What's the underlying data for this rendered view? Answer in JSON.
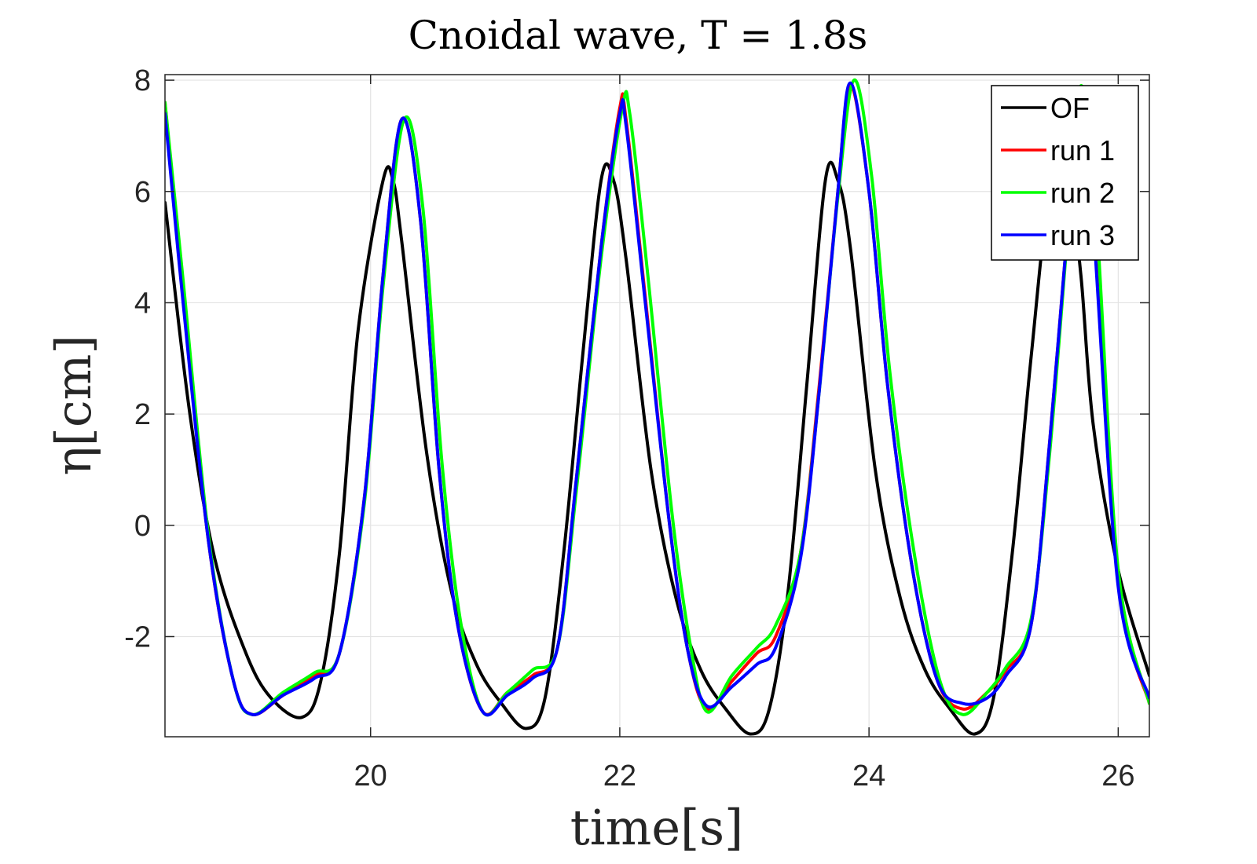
{
  "chart_data": {
    "type": "line",
    "title": "Cnoidal wave, T = 1.8s",
    "xlabel": "time[s]",
    "ylabel": "η[cm]",
    "xlim": [
      18.35,
      26.25
    ],
    "ylim": [
      -3.8,
      8.1
    ],
    "xticks": [
      20,
      22,
      24,
      26
    ],
    "yticks": [
      -2,
      0,
      2,
      4,
      6,
      8
    ],
    "grid": true,
    "legend_position": "top-right",
    "series": [
      {
        "name": "OF",
        "color": "#000000",
        "x": [
          18.35,
          18.55,
          18.75,
          19.0,
          19.2,
          19.45,
          19.6,
          19.75,
          19.9,
          20.1,
          20.18,
          20.25,
          20.45,
          20.65,
          20.85,
          21.05,
          21.25,
          21.4,
          21.55,
          21.7,
          21.85,
          21.95,
          22.05,
          22.25,
          22.45,
          22.65,
          22.85,
          23.05,
          23.2,
          23.35,
          23.5,
          23.65,
          23.75,
          23.85,
          24.05,
          24.25,
          24.45,
          24.65,
          24.85,
          25.0,
          25.15,
          25.3,
          25.45,
          25.6,
          25.7,
          25.8,
          26.0,
          26.25
        ],
        "y": [
          5.8,
          2.0,
          -0.6,
          -2.3,
          -3.1,
          -3.45,
          -2.8,
          -0.5,
          3.5,
          6.2,
          6.2,
          5.1,
          1.3,
          -1.2,
          -2.5,
          -3.2,
          -3.65,
          -3.1,
          -0.5,
          3.0,
          6.2,
          6.2,
          4.8,
          1.0,
          -1.3,
          -2.6,
          -3.3,
          -3.75,
          -3.3,
          -1.2,
          2.5,
          6.2,
          6.2,
          5.0,
          1.0,
          -1.3,
          -2.6,
          -3.3,
          -3.75,
          -3.1,
          -0.5,
          3.0,
          6.0,
          6.2,
          4.5,
          1.8,
          -0.8,
          -2.7
        ]
      },
      {
        "name": "run 1",
        "color": "#ff0000",
        "x": [
          18.35,
          18.5,
          18.7,
          18.9,
          19.05,
          19.3,
          19.55,
          19.75,
          19.95,
          20.1,
          20.25,
          20.4,
          20.55,
          20.7,
          20.9,
          21.1,
          21.3,
          21.5,
          21.65,
          21.85,
          22.0,
          22.05,
          22.2,
          22.4,
          22.55,
          22.7,
          22.9,
          23.1,
          23.25,
          23.45,
          23.6,
          23.75,
          23.85,
          24.0,
          24.15,
          24.35,
          24.55,
          24.75,
          24.95,
          25.1,
          25.3,
          25.45,
          25.6,
          25.7,
          25.8,
          26.0,
          26.25
        ],
        "y": [
          7.6,
          4.0,
          -0.3,
          -2.8,
          -3.4,
          -3.05,
          -2.7,
          -2.3,
          0.5,
          4.5,
          7.3,
          5.5,
          1.0,
          -1.8,
          -3.35,
          -3.0,
          -2.7,
          -2.2,
          0.8,
          5.0,
          7.5,
          7.3,
          4.2,
          0.0,
          -2.3,
          -3.3,
          -2.8,
          -2.3,
          -2.0,
          -0.5,
          2.5,
          6.0,
          7.9,
          6.0,
          2.5,
          -0.8,
          -2.8,
          -3.3,
          -3.0,
          -2.6,
          -1.8,
          1.5,
          5.5,
          7.8,
          5.5,
          -1.0,
          -3.2
        ]
      },
      {
        "name": "run 2",
        "color": "#00ff00",
        "x": [
          18.35,
          18.5,
          18.7,
          18.9,
          19.05,
          19.3,
          19.55,
          19.75,
          19.95,
          20.1,
          20.27,
          20.42,
          20.57,
          20.72,
          20.9,
          21.1,
          21.3,
          21.5,
          21.65,
          21.85,
          22.02,
          22.08,
          22.22,
          22.42,
          22.57,
          22.7,
          22.9,
          23.1,
          23.25,
          23.45,
          23.6,
          23.75,
          23.88,
          24.02,
          24.17,
          24.37,
          24.57,
          24.75,
          24.95,
          25.1,
          25.3,
          25.45,
          25.6,
          25.7,
          25.82,
          26.0,
          26.25
        ],
        "y": [
          7.6,
          4.3,
          -0.2,
          -2.8,
          -3.4,
          -3.0,
          -2.65,
          -2.3,
          0.4,
          4.3,
          7.3,
          5.7,
          1.2,
          -1.7,
          -3.35,
          -3.0,
          -2.6,
          -2.2,
          0.6,
          4.8,
          7.5,
          7.4,
          4.6,
          0.2,
          -2.2,
          -3.35,
          -2.7,
          -2.2,
          -1.8,
          -0.5,
          2.4,
          5.9,
          8.0,
          6.3,
          2.7,
          -0.6,
          -2.8,
          -3.4,
          -3.0,
          -2.55,
          -1.7,
          1.3,
          5.4,
          7.9,
          5.7,
          -0.8,
          -3.2
        ]
      },
      {
        "name": "run 3",
        "color": "#0000ff",
        "x": [
          18.35,
          18.5,
          18.7,
          18.9,
          19.05,
          19.3,
          19.55,
          19.75,
          19.95,
          20.1,
          20.25,
          20.4,
          20.55,
          20.7,
          20.9,
          21.1,
          21.3,
          21.5,
          21.65,
          21.85,
          22.0,
          22.05,
          22.2,
          22.4,
          22.55,
          22.7,
          22.9,
          23.1,
          23.25,
          23.45,
          23.6,
          23.75,
          23.85,
          24.0,
          24.15,
          24.35,
          24.55,
          24.75,
          24.95,
          25.1,
          25.3,
          25.45,
          25.6,
          25.7,
          25.8,
          26.0,
          26.25
        ],
        "y": [
          7.4,
          3.9,
          -0.3,
          -2.8,
          -3.4,
          -3.05,
          -2.75,
          -2.3,
          0.5,
          4.5,
          7.3,
          5.5,
          1.0,
          -1.8,
          -3.35,
          -3.05,
          -2.75,
          -2.2,
          0.8,
          5.0,
          7.4,
          7.2,
          4.1,
          0.0,
          -2.3,
          -3.25,
          -2.9,
          -2.5,
          -2.2,
          -0.6,
          2.4,
          6.0,
          7.95,
          6.0,
          2.5,
          -0.8,
          -2.8,
          -3.2,
          -3.1,
          -2.7,
          -1.8,
          1.5,
          5.5,
          7.7,
          5.4,
          -1.1,
          -3.1
        ]
      }
    ]
  }
}
